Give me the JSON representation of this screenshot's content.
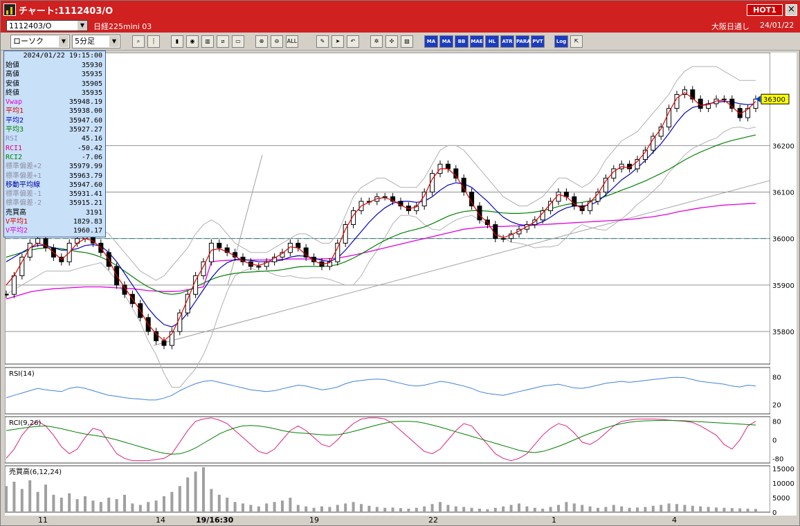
{
  "window": {
    "title": "チャート:1112403/O",
    "hot_label": "HOT1",
    "close_glyph": "×"
  },
  "header": {
    "symbol": "1112403/O",
    "name": "日経225mini 03",
    "session": "大阪日通し",
    "date": "24/01/22"
  },
  "toolbar": {
    "chart_type": "ローソク",
    "interval": "5分足"
  },
  "toolbar_icons": [
    "zoom-icon",
    "bar-width-icon",
    "candle-color-icon",
    "search-icon",
    "bar-chart-icon",
    "line-chart-icon",
    "eraser-icon",
    "zoom-in-icon",
    "zoom-out-icon",
    "all-range-icon",
    "pen-icon",
    "cursor-icon",
    "undo-icon",
    "settings-icon",
    "wrench-icon",
    "palette-icon"
  ],
  "indicator_buttons": [
    "MA",
    "MA",
    "BB",
    "MAE",
    "HL",
    "ATR",
    "PARA",
    "PVT",
    "Log"
  ],
  "info_panel": {
    "datetime": "2024/01/22  19:15:00",
    "rows": [
      {
        "label": "始値",
        "value": "35930",
        "color": "#000000"
      },
      {
        "label": "高値",
        "value": "35935",
        "color": "#000000"
      },
      {
        "label": "安値",
        "value": "35905",
        "color": "#000000"
      },
      {
        "label": "終値",
        "value": "35935",
        "color": "#000000"
      },
      {
        "label": "Vwap",
        "value": "35948.19",
        "color": "#e000e0"
      },
      {
        "label": "平均1",
        "value": "35938.00",
        "color": "#e00000"
      },
      {
        "label": "平均2",
        "value": "35947.60",
        "color": "#0000c0"
      },
      {
        "label": "平均3",
        "value": "35927.27",
        "color": "#008000"
      },
      {
        "label": "RSI",
        "value": "45.16",
        "color": "#8090c0"
      },
      {
        "label": "RCI1",
        "value": "-50.42",
        "color": "#e00080"
      },
      {
        "label": "RCI2",
        "value": "-7.06",
        "color": "#008000"
      },
      {
        "label": "標準偏差+2",
        "value": "35979.99",
        "color": "#9090a0"
      },
      {
        "label": "標準偏差+1",
        "value": "35963.79",
        "color": "#9090a0"
      },
      {
        "label": "移動平均線",
        "value": "35947.60",
        "color": "#0000a0"
      },
      {
        "label": "標準偏差-1",
        "value": "35931.41",
        "color": "#9090a0"
      },
      {
        "label": "標準偏差-2",
        "value": "35915.21",
        "color": "#9090a0"
      },
      {
        "label": "売買高",
        "value": "3191",
        "color": "#000000"
      },
      {
        "label": "V平均1",
        "value": "1829.83",
        "color": "#e00000"
      },
      {
        "label": "V平均2",
        "value": "1960.17",
        "color": "#e000e0"
      }
    ]
  },
  "chart_data": [
    {
      "type": "line",
      "series_kind": "candlestick",
      "yticks": [
        35800,
        35900,
        36000,
        36100,
        36200
      ],
      "ylim": [
        35730,
        36400
      ],
      "current_price_label": "36300",
      "xticks": [
        "11",
        "14",
        "19/16:30",
        "19",
        "22",
        "1",
        "4"
      ],
      "close": [
        35880,
        35920,
        35960,
        35990,
        36000,
        35980,
        35960,
        35950,
        35990,
        36000,
        36010,
        35990,
        35970,
        35940,
        35900,
        35880,
        35860,
        35830,
        35800,
        35780,
        35770,
        35800,
        35840,
        35880,
        35920,
        35950,
        35990,
        35980,
        35970,
        35960,
        35950,
        35940,
        35940,
        35950,
        35960,
        35970,
        35990,
        35980,
        35960,
        35950,
        35940,
        35950,
        35990,
        36030,
        36060,
        36080,
        36080,
        36090,
        36090,
        36080,
        36070,
        36060,
        36070,
        36100,
        36140,
        36160,
        36150,
        36130,
        36100,
        36070,
        36040,
        36030,
        36000,
        36000,
        36010,
        36020,
        36030,
        36040,
        36060,
        36080,
        36100,
        36090,
        36070,
        36060,
        36080,
        36100,
        36130,
        36150,
        36160,
        36150,
        36170,
        36190,
        36220,
        36240,
        36280,
        36310,
        36320,
        36300,
        36280,
        36290,
        36300,
        36300,
        36280,
        36260,
        36280,
        36300
      ],
      "ma1": [
        35900,
        35920,
        35950,
        35980,
        35990,
        35985,
        35970,
        35955,
        35970,
        35990,
        36000,
        35995,
        35980,
        35955,
        35920,
        35895,
        35870,
        35845,
        35815,
        35795,
        35780,
        35795,
        35830,
        35870,
        35910,
        35940,
        35975,
        35978,
        35972,
        35962,
        35952,
        35945,
        35942,
        35948,
        35958,
        35968,
        35982,
        35980,
        35965,
        35952,
        35945,
        35948,
        35980,
        36020,
        36050,
        36070,
        36078,
        36086,
        36088,
        36082,
        36072,
        36064,
        36068,
        36092,
        36128,
        36150,
        36150,
        36135,
        36108,
        36078,
        36050,
        36035,
        36008,
        36002,
        36008,
        36016,
        36026,
        36036,
        36055,
        36075,
        36095,
        36090,
        36075,
        36064,
        36078,
        36096,
        36124,
        36144,
        36155,
        36152,
        36166,
        36186,
        36214,
        36236,
        36272,
        36302,
        36314,
        36302,
        36286,
        36288,
        36296,
        36298,
        36284,
        36268,
        36278,
        36295
      ],
      "ma2": [
        35950,
        35960,
        35970,
        35980,
        35985,
        35985,
        35980,
        35975,
        35975,
        35978,
        35985,
        35987,
        35984,
        35970,
        35950,
        35925,
        35900,
        35875,
        35850,
        35830,
        35815,
        35810,
        35820,
        35840,
        35865,
        35890,
        35915,
        35935,
        35948,
        35955,
        35955,
        35953,
        35950,
        35950,
        35951,
        35954,
        35960,
        35963,
        35962,
        35958,
        35953,
        35951,
        35958,
        35975,
        35995,
        36015,
        36035,
        36052,
        36066,
        36076,
        36080,
        36080,
        36078,
        36080,
        36090,
        36104,
        36115,
        36120,
        36118,
        36110,
        36095,
        36080,
        36062,
        36046,
        36036,
        36030,
        36028,
        36030,
        36036,
        36046,
        36058,
        36066,
        36070,
        36070,
        36072,
        36080,
        36094,
        36110,
        36126,
        36138,
        36152,
        36168,
        36186,
        36204,
        36226,
        36250,
        36270,
        36282,
        36286,
        36290,
        36293,
        36295,
        36294,
        36290,
        36288,
        36290
      ],
      "ma3": [
        35960,
        35965,
        35970,
        35975,
        35978,
        35980,
        35980,
        35978,
        35975,
        35972,
        35970,
        35966,
        35960,
        35952,
        35942,
        35930,
        35918,
        35906,
        35896,
        35888,
        35882,
        35880,
        35882,
        35888,
        35896,
        35904,
        35912,
        35918,
        35922,
        35925,
        35927,
        35928,
        35929,
        35930,
        35931,
        35933,
        35936,
        35939,
        35940,
        35940,
        35940,
        35941,
        35944,
        35950,
        35958,
        35967,
        35977,
        35987,
        35996,
        36004,
        36011,
        36016,
        36020,
        36025,
        36032,
        36040,
        36048,
        36054,
        36058,
        36060,
        36060,
        36059,
        36057,
        36055,
        36054,
        36054,
        36055,
        36057,
        36060,
        36064,
        36069,
        36073,
        36076,
        36078,
        36081,
        36085,
        36091,
        36097,
        36104,
        36110,
        36117,
        36124,
        36132,
        36140,
        36149,
        36159,
        36169,
        36178,
        36186,
        36193,
        36200,
        36206,
        36211,
        36215,
        36219,
        36223
      ],
      "vwap": [
        35870,
        35875,
        35880,
        35885,
        35888,
        35890,
        35892,
        35893,
        35894,
        35895,
        35896,
        35896,
        35896,
        35895,
        35894,
        35893,
        35892,
        35890,
        35888,
        35887,
        35886,
        35886,
        35887,
        35890,
        35893,
        35896,
        35950,
        35952,
        35953,
        35954,
        35954,
        35954,
        35954,
        35954,
        35955,
        35955,
        35956,
        35956,
        35956,
        35956,
        35956,
        35957,
        35958,
        35961,
        35964,
        35968,
        35972,
        35976,
        35980,
        35984,
        35988,
        35992,
        35996,
        36000,
        36004,
        36008,
        36012,
        36016,
        36020,
        36022,
        36024,
        36025,
        36026,
        36026,
        36027,
        36027,
        36028,
        36029,
        36030,
        36031,
        36032,
        36033,
        36034,
        36035,
        36036,
        36037,
        36038,
        36039,
        36040,
        36041,
        36043,
        36045,
        36047,
        36050,
        36053,
        36057,
        36060,
        36063,
        36066,
        36068,
        36070,
        36072,
        36073,
        36074,
        36075,
        36076
      ],
      "bb_upper": [
        36020,
        36030,
        36040,
        36050,
        36050,
        36040,
        36030,
        36020,
        36020,
        36020,
        36030,
        36030,
        36020,
        36010,
        35990,
        35970,
        35950,
        35930,
        35920,
        35910,
        35920,
        35940,
        35960,
        35980,
        36010,
        36030,
        36040,
        36030,
        36010,
        35990,
        35980,
        35970,
        35970,
        35970,
        35980,
        35990,
        36000,
        36010,
        36010,
        36000,
        35990,
        35990,
        36010,
        36050,
        36090,
        36110,
        36120,
        36130,
        36130,
        36120,
        36110,
        36110,
        36110,
        36130,
        36160,
        36190,
        36200,
        36200,
        36190,
        36170,
        36150,
        36130,
        36110,
        36090,
        36080,
        36070,
        36070,
        36080,
        36090,
        36110,
        36130,
        36130,
        36120,
        36110,
        36120,
        36140,
        36170,
        36190,
        36210,
        36220,
        36230,
        36250,
        36270,
        36290,
        36310,
        36340,
        36360,
        36370,
        36370,
        36370,
        36370,
        36360,
        36350,
        36340,
        36340,
        36340
      ],
      "bb_lower": [
        35880,
        35890,
        35900,
        35910,
        35920,
        35930,
        35930,
        35930,
        35930,
        35935,
        35940,
        35944,
        35948,
        35930,
        35910,
        35880,
        35850,
        35820,
        35780,
        35750,
        35710,
        35680,
        35680,
        35700,
        35720,
        35750,
        35790,
        35840,
        35886,
        35920,
        35930,
        35936,
        35930,
        35930,
        35922,
        35918,
        35920,
        35916,
        35914,
        35916,
        35916,
        35912,
        35906,
        35900,
        35900,
        35920,
        35950,
        35974,
        36002,
        36032,
        36050,
        36050,
        36046,
        36030,
        36020,
        36018,
        36030,
        36040,
        36046,
        36050,
        36040,
        36030,
        36014,
        36002,
        35992,
        35990,
        35986,
        35980,
        35982,
        35982,
        35986,
        36002,
        36020,
        36030,
        36024,
        36020,
        36018,
        36030,
        36042,
        36056,
        36074,
        36086,
        36102,
        36118,
        36142,
        36160,
        36180,
        36194,
        36202,
        36210,
        36216,
        36230,
        36238,
        36240,
        36236,
        36240
      ]
    },
    {
      "type": "line",
      "title": "RSI(14)",
      "yticks": [
        20,
        80
      ],
      "ylim": [
        0,
        100
      ],
      "values": [
        35,
        40,
        45,
        50,
        55,
        52,
        50,
        48,
        55,
        58,
        55,
        50,
        45,
        40,
        38,
        35,
        33,
        32,
        30,
        30,
        34,
        40,
        50,
        58,
        65,
        70,
        72,
        68,
        64,
        60,
        56,
        52,
        50,
        48,
        50,
        54,
        58,
        62,
        60,
        56,
        52,
        54,
        58,
        65,
        70,
        72,
        74,
        75,
        74,
        70,
        66,
        62,
        60,
        62,
        66,
        70,
        68,
        64,
        60,
        55,
        48,
        44,
        42,
        40,
        44,
        48,
        52,
        56,
        60,
        62,
        64,
        60,
        56,
        55,
        58,
        62,
        66,
        68,
        70,
        68,
        70,
        72,
        74,
        76,
        78,
        79,
        78,
        74,
        70,
        68,
        66,
        64,
        60,
        58,
        62,
        60
      ]
    },
    {
      "type": "line",
      "title": "RCI(9,26)",
      "yticks": [
        80,
        0,
        -80
      ],
      "ylim": [
        -100,
        100
      ],
      "series": [
        {
          "values": [
            -80,
            -40,
            20,
            60,
            80,
            60,
            20,
            -30,
            -60,
            -40,
            10,
            50,
            40,
            -10,
            -60,
            -80,
            -90,
            -90,
            -90,
            -85,
            -80,
            -60,
            -10,
            40,
            80,
            90,
            95,
            85,
            70,
            40,
            10,
            -20,
            -50,
            -60,
            -40,
            0,
            40,
            60,
            40,
            10,
            -20,
            -30,
            0,
            40,
            70,
            90,
            95,
            95,
            90,
            70,
            40,
            10,
            -20,
            -50,
            -60,
            -40,
            0,
            40,
            70,
            60,
            20,
            -20,
            -60,
            -80,
            -90,
            -80,
            -60,
            -20,
            20,
            50,
            70,
            60,
            30,
            -10,
            -20,
            0,
            30,
            60,
            80,
            85,
            90,
            90,
            90,
            88,
            85,
            82,
            80,
            75,
            60,
            40,
            20,
            -20,
            -40,
            0,
            60,
            80
          ]
        },
        {
          "values": [
            40,
            45,
            50,
            55,
            58,
            60,
            55,
            48,
            40,
            32,
            25,
            20,
            15,
            8,
            0,
            -10,
            -20,
            -30,
            -40,
            -50,
            -58,
            -62,
            -60,
            -50,
            -35,
            -15,
            5,
            25,
            40,
            52,
            60,
            62,
            60,
            55,
            48,
            40,
            34,
            30,
            28,
            25,
            22,
            20,
            22,
            28,
            36,
            45,
            55,
            64,
            72,
            78,
            80,
            80,
            78,
            72,
            64,
            55,
            45,
            35,
            25,
            15,
            5,
            -5,
            -15,
            -25,
            -35,
            -45,
            -52,
            -55,
            -50,
            -40,
            -28,
            -15,
            0,
            15,
            28,
            40,
            52,
            62,
            70,
            76,
            80,
            82,
            83,
            84,
            84,
            83,
            82,
            80,
            78,
            76,
            74,
            72,
            70,
            68,
            66,
            64
          ]
        }
      ]
    },
    {
      "type": "bar",
      "title": "売買高(6,12,24)",
      "yticks": [
        15000,
        10000,
        5000,
        0
      ],
      "ylim": [
        0,
        16000
      ],
      "values": [
        9000,
        10500,
        8000,
        11000,
        7000,
        9500,
        6000,
        5000,
        6500,
        4500,
        5500,
        4000,
        3500,
        5000,
        4500,
        6000,
        3000,
        2500,
        3500,
        4000,
        5500,
        7000,
        9000,
        12000,
        14000,
        15500,
        8000,
        6000,
        5000,
        3500,
        3000,
        2500,
        2000,
        3000,
        3500,
        4000,
        5000,
        2500,
        2000,
        1500,
        2000,
        1800,
        2500,
        3000,
        3500,
        2800,
        2200,
        1800,
        1500,
        1600,
        1400,
        1200,
        1500,
        2000,
        2800,
        3500,
        2500,
        2000,
        1800,
        1500,
        1200,
        1000,
        1500,
        2000,
        2500,
        3000,
        2000,
        1500,
        1200,
        1800,
        2500,
        3500,
        3000,
        2500,
        2000,
        1500,
        1800,
        2500,
        2000,
        1500,
        1600,
        1800,
        2200,
        2500,
        3000,
        2800,
        2500,
        2200,
        2000,
        1800,
        1600,
        1500,
        1400,
        1300,
        1200,
        1100
      ]
    }
  ]
}
